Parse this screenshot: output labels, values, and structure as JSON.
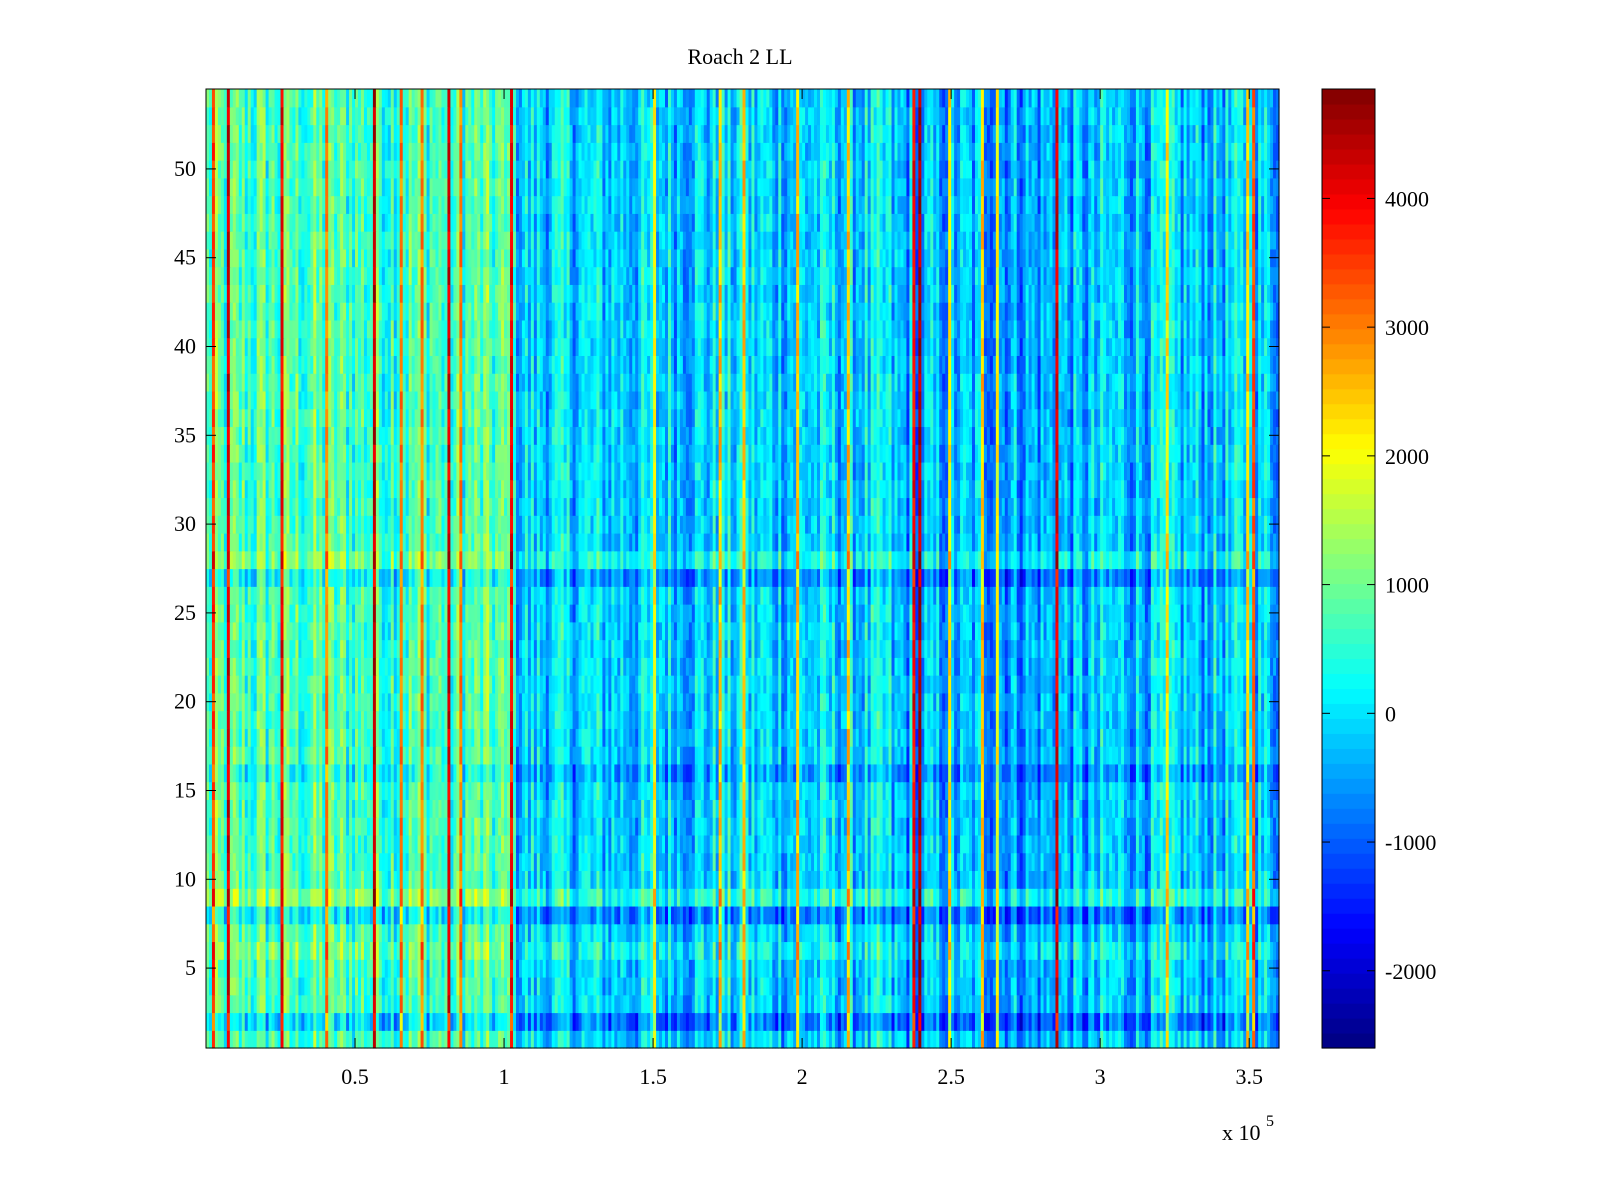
{
  "chart_data": {
    "type": "heatmap",
    "title": "Roach 2 LL",
    "xlabel": "",
    "ylabel": "",
    "colormap": "jet",
    "xlim": [
      0,
      360000
    ],
    "ylim": [
      0.5,
      54.5
    ],
    "x_exponent_label": "x 10",
    "x_exponent_power": "5",
    "x_ticks": [
      {
        "value": 50000,
        "label": "0.5"
      },
      {
        "value": 100000,
        "label": "1"
      },
      {
        "value": 150000,
        "label": "1.5"
      },
      {
        "value": 200000,
        "label": "2"
      },
      {
        "value": 250000,
        "label": "2.5"
      },
      {
        "value": 300000,
        "label": "3"
      },
      {
        "value": 350000,
        "label": "3.5"
      }
    ],
    "y_ticks": [
      {
        "value": 5,
        "label": "5"
      },
      {
        "value": 10,
        "label": "10"
      },
      {
        "value": 15,
        "label": "15"
      },
      {
        "value": 20,
        "label": "20"
      },
      {
        "value": 25,
        "label": "25"
      },
      {
        "value": 30,
        "label": "30"
      },
      {
        "value": 35,
        "label": "35"
      },
      {
        "value": 40,
        "label": "40"
      },
      {
        "value": 45,
        "label": "45"
      },
      {
        "value": 50,
        "label": "50"
      }
    ],
    "colorbar": {
      "clim": [
        -2600,
        4850
      ],
      "ticks": [
        {
          "value": -2000,
          "label": "-2000"
        },
        {
          "value": -1000,
          "label": "-1000"
        },
        {
          "value": 0,
          "label": "0"
        },
        {
          "value": 1000,
          "label": "1000"
        },
        {
          "value": 2000,
          "label": "2000"
        },
        {
          "value": 3000,
          "label": "3000"
        },
        {
          "value": 4000,
          "label": "4000"
        }
      ]
    },
    "rows": 54,
    "regions": [
      {
        "x_range": [
          0,
          102000
        ],
        "mean": 700
      },
      {
        "x_range": [
          102000,
          230000
        ],
        "mean": -100
      },
      {
        "x_range": [
          230000,
          300000
        ],
        "mean": -400
      },
      {
        "x_range": [
          300000,
          360000
        ],
        "mean": -200
      }
    ],
    "row_offsets": [
      {
        "rows": [
          2
        ],
        "offset": -700
      },
      {
        "rows": [
          6
        ],
        "offset": 300
      },
      {
        "rows": [
          8
        ],
        "offset": -600
      },
      {
        "rows": [
          9
        ],
        "offset": 500
      },
      {
        "rows": [
          16
        ],
        "offset": -400
      },
      {
        "rows": [
          27
        ],
        "offset": -500
      },
      {
        "rows": [
          28
        ],
        "offset": 400
      }
    ],
    "stripe_columns": [
      {
        "x": 2500,
        "value": 3500
      },
      {
        "x": 7500,
        "value": 4200
      },
      {
        "x": 25000,
        "value": 4000
      },
      {
        "x": 40000,
        "value": 3000
      },
      {
        "x": 56000,
        "value": 4400
      },
      {
        "x": 65000,
        "value": 3000
      },
      {
        "x": 72000,
        "value": 3000
      },
      {
        "x": 81000,
        "value": 4200
      },
      {
        "x": 85000,
        "value": 3000
      },
      {
        "x": 102000,
        "value": 4000
      },
      {
        "x": 150000,
        "value": 2000
      },
      {
        "x": 172000,
        "value": 2500
      },
      {
        "x": 180000,
        "value": 2500
      },
      {
        "x": 198000,
        "value": 2500
      },
      {
        "x": 215000,
        "value": 2500
      },
      {
        "x": 237000,
        "value": 4000
      },
      {
        "x": 239000,
        "value": 4500
      },
      {
        "x": 249000,
        "value": 2200
      },
      {
        "x": 260000,
        "value": 2500
      },
      {
        "x": 265000,
        "value": 2000
      },
      {
        "x": 285000,
        "value": 4200
      },
      {
        "x": 322000,
        "value": 2200
      },
      {
        "x": 349000,
        "value": 2400
      },
      {
        "x": 351000,
        "value": 3200
      }
    ]
  }
}
